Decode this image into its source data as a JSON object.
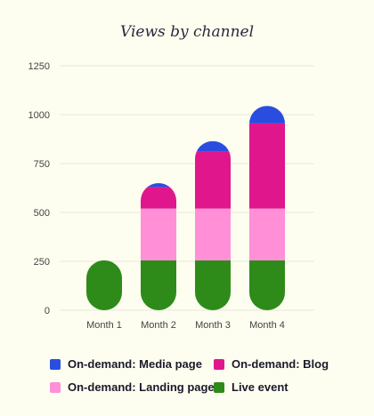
{
  "chart_data": {
    "type": "bar",
    "stacked": true,
    "title": "Views by channel",
    "categories": [
      "Month 1",
      "Month 2",
      "Month 3",
      "Month 4"
    ],
    "ylim": [
      0,
      1250
    ],
    "yticks": [
      0,
      250,
      500,
      750,
      1000,
      1250
    ],
    "grid": true,
    "legend_position": "bottom",
    "series": [
      {
        "name": "Live event",
        "color": "#2e8b1a",
        "values": [
          255,
          255,
          255,
          255
        ]
      },
      {
        "name": "On-demand: Landing page",
        "color": "#ff90d8",
        "values": [
          0,
          265,
          265,
          265
        ]
      },
      {
        "name": "On-demand: Blog",
        "color": "#e0168c",
        "values": [
          0,
          110,
          290,
          435
        ]
      },
      {
        "name": "On-demand: Media page",
        "color": "#2a4de0",
        "values": [
          0,
          20,
          55,
          90
        ]
      }
    ]
  },
  "legend": [
    {
      "label": "On-demand: Media page",
      "color": "#2a4de0"
    },
    {
      "label": "On-demand: Blog",
      "color": "#e0168c"
    },
    {
      "label": "On-demand: Landing page",
      "color": "#ff90d8"
    },
    {
      "label": "Live event",
      "color": "#2e8b1a"
    }
  ]
}
